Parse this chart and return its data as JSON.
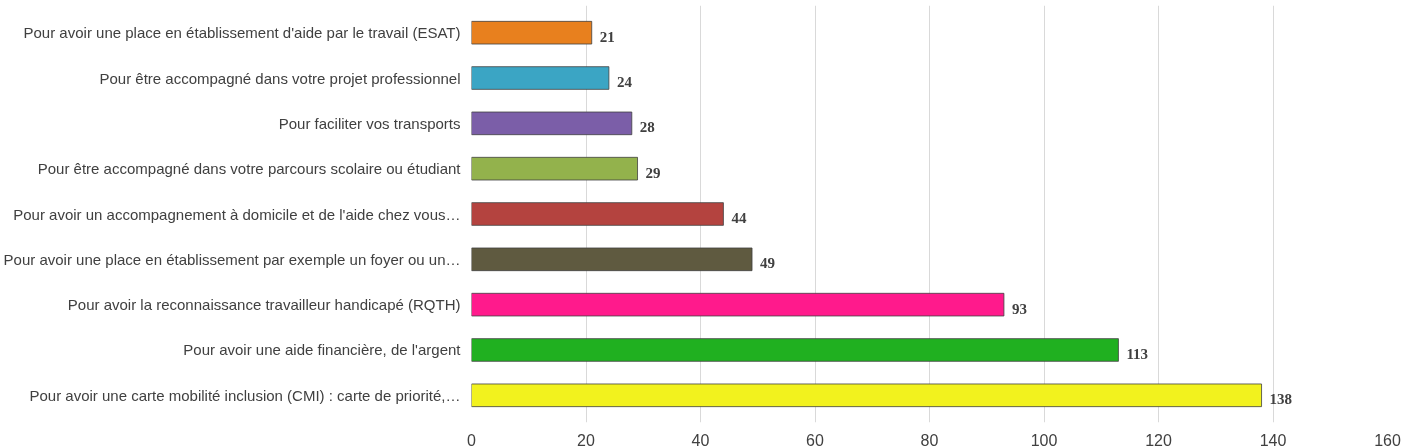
{
  "chart_data": {
    "type": "bar",
    "orientation": "horizontal",
    "categories": [
      "Pour avoir une place en établissement d'aide par le travail (ESAT)",
      "Pour être accompagné dans votre projet professionnel",
      "Pour faciliter vos transports",
      "Pour être accompagné dans votre parcours scolaire ou étudiant",
      "Pour avoir un accompagnement à domicile et de l'aide chez vous…",
      "Pour avoir une place en établissement par exemple un foyer ou un…",
      "Pour avoir la reconnaissance travailleur handicapé (RQTH)",
      "Pour avoir une aide financière, de l'argent",
      "Pour avoir une carte mobilité inclusion (CMI) : carte de priorité,…"
    ],
    "values": [
      21,
      24,
      28,
      29,
      44,
      49,
      93,
      113,
      138
    ],
    "colors": [
      "#e8801e",
      "#3ba5c4",
      "#7b5ea8",
      "#93b24c",
      "#b4433f",
      "#5f5a40",
      "#ff1a8c",
      "#20b020",
      "#f2f21e"
    ],
    "xlim": [
      0,
      160
    ],
    "xticks": [
      0,
      20,
      40,
      60,
      80,
      100,
      120,
      140,
      160
    ],
    "grid": "x",
    "data_labels": true
  }
}
